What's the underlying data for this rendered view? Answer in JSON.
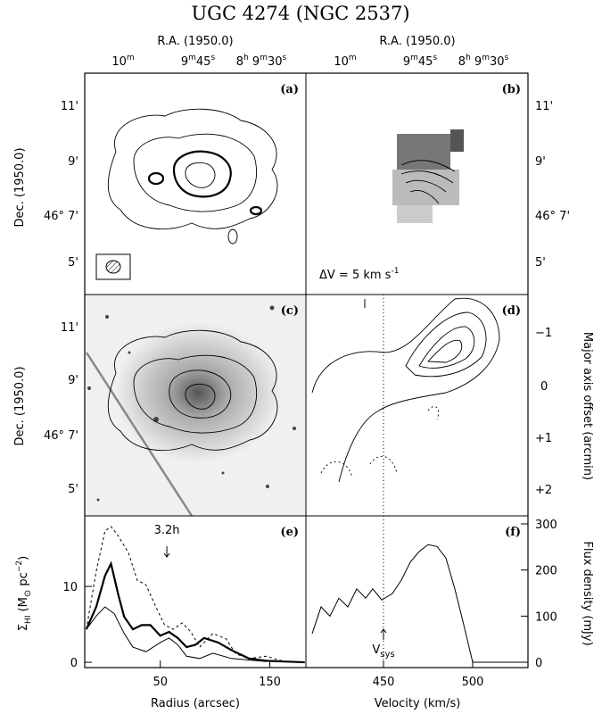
{
  "title": "UGC 4274 (NGC 2537)",
  "axes": {
    "ra_label": "R.A. (1950.0)",
    "dec_label": "Dec. (1950.0)",
    "ra_ticks": [
      [
        "10",
        "m"
      ],
      [
        "9",
        "m",
        "45",
        "s"
      ],
      [
        "8",
        "h",
        " 9",
        "m",
        "30",
        "s"
      ]
    ],
    "dec_ticks": [
      "11'",
      "9'",
      "46° 7'",
      "5'"
    ]
  },
  "panels": {
    "a": {
      "label": "(a)"
    },
    "b": {
      "label": "(b)",
      "note": [
        "ΔV = 5 km s",
        "-1"
      ]
    },
    "c": {
      "label": "(c)"
    },
    "d": {
      "label": "(d)",
      "offset_label": "Major axis offset (arcmin)",
      "offset_ticks": [
        "−1",
        "0",
        "+1",
        "+2"
      ]
    }
  },
  "chart_data": [
    {
      "type": "line",
      "panel_label": "(e)",
      "x_label": "Radius (arcsec)",
      "y_label": [
        "Σ",
        "HI",
        " (M",
        "⊙",
        " pc",
        "−2",
        ")"
      ],
      "xlim": [
        -19,
        183
      ],
      "ylim": [
        -0.7,
        19.3
      ],
      "xticks": [
        50,
        150
      ],
      "yticks": [
        0,
        10
      ],
      "annotation": {
        "text": "3.2h",
        "x": 56
      },
      "series": [
        {
          "color": "#000",
          "width": 2.2,
          "dash": false,
          "x": [
            -17.5,
            -8.5,
            -0.5,
            5,
            11.5,
            17,
            25,
            33,
            41,
            50,
            58,
            66,
            74,
            82,
            90,
            103,
            115,
            131,
            147,
            163,
            182
          ],
          "values": [
            4.35,
            7.3,
            11.4,
            13,
            9,
            6,
            4.35,
            4.9,
            4.9,
            3.5,
            4,
            3.2,
            2,
            2.3,
            3.2,
            2.6,
            1.6,
            0.5,
            0.2,
            0.1,
            0
          ]
        },
        {
          "color": "#000",
          "width": 1,
          "dash": true,
          "x": [
            -17.5,
            -8.5,
            -0.5,
            5,
            11.5,
            21,
            29,
            37,
            46,
            54,
            62,
            70,
            78,
            86,
            98,
            110,
            119,
            131,
            147,
            163
          ],
          "values": [
            4.35,
            12,
            17.3,
            17.9,
            16.7,
            14.4,
            10.8,
            10.2,
            7.3,
            4.9,
            4.35,
            5.2,
            4,
            2,
            3.8,
            3.1,
            1.1,
            0.5,
            0.8,
            0.1
          ]
        },
        {
          "color": "#000",
          "width": 1,
          "dash": false,
          "x": [
            -17.5,
            -8.5,
            -0.5,
            8,
            17,
            25,
            37,
            50,
            58,
            66,
            74,
            86,
            98,
            115,
            147
          ],
          "values": [
            4.35,
            6.1,
            7.3,
            6.4,
            3.8,
            2,
            1.4,
            2.6,
            3.2,
            2.3,
            0.8,
            0.5,
            1.2,
            0.5,
            0.1
          ]
        }
      ]
    },
    {
      "type": "line",
      "panel_label": "(f)",
      "x_label": "Velocity (km/s)",
      "y2_label": "Flux density (mJy)",
      "xlim": [
        406.5,
        531
      ],
      "y2lim": [
        -11.6,
        317.4
      ],
      "xticks": [
        450,
        500
      ],
      "y2ticks": [
        0,
        100,
        200,
        300
      ],
      "annotation": {
        "text": [
          "V",
          "sys"
        ],
        "x": 450
      },
      "series": [
        {
          "color": "#000",
          "width": 1,
          "dash": false,
          "axis": "y2",
          "x": [
            410,
            415,
            420,
            425,
            430,
            435,
            440,
            444,
            449,
            455,
            460,
            465,
            470,
            475,
            480,
            485,
            490,
            495,
            500,
            507.5,
            530
          ],
          "values": [
            62,
            120,
            100,
            139,
            120,
            159,
            139,
            159,
            135,
            149,
            178,
            217,
            240,
            255,
            251,
            226,
            159,
            81,
            0,
            0,
            0
          ]
        }
      ]
    }
  ]
}
